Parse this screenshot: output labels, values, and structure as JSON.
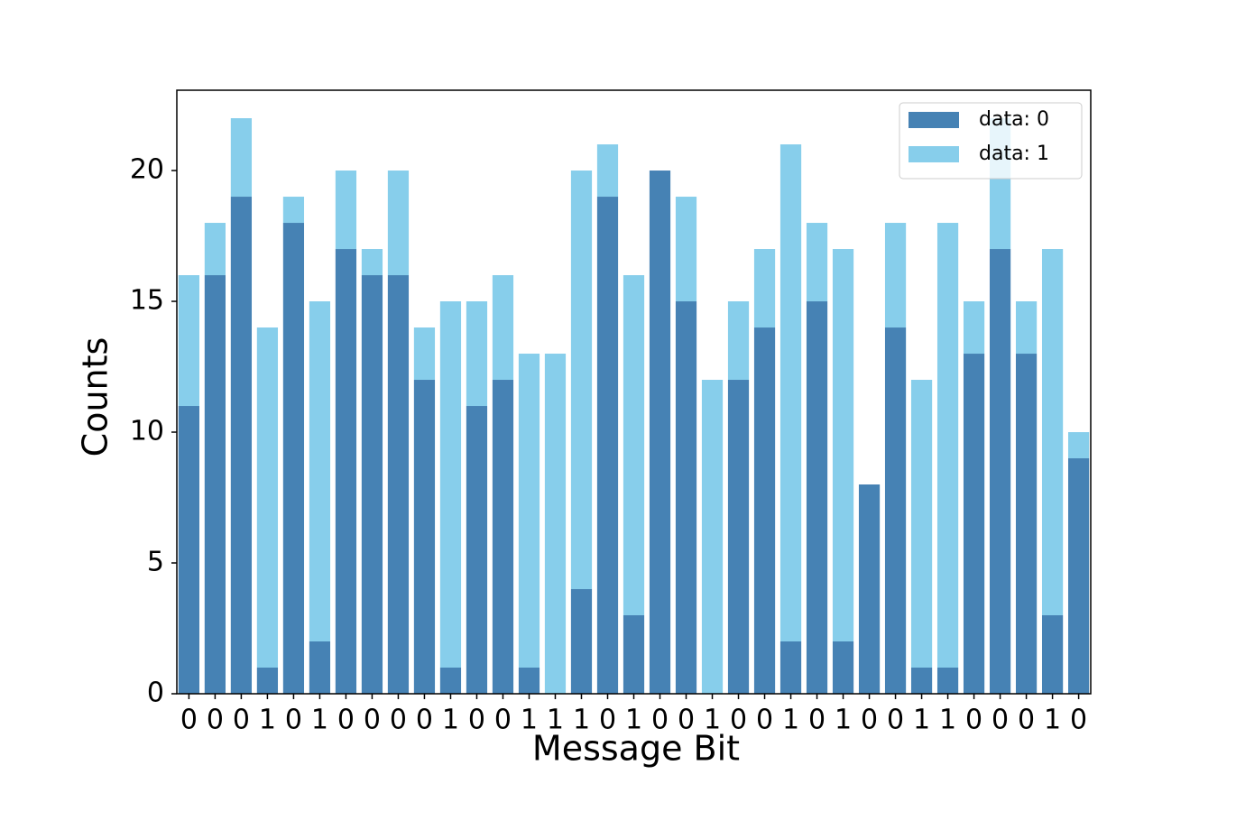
{
  "chart_data": {
    "type": "stacked_bar",
    "xlabel": "Message Bit",
    "ylabel": "Counts",
    "categories": [
      "0",
      "0",
      "0",
      "1",
      "0",
      "1",
      "0",
      "0",
      "0",
      "0",
      "1",
      "0",
      "0",
      "1",
      "1",
      "1",
      "0",
      "1",
      "0",
      "0",
      "1",
      "0",
      "0",
      "1",
      "0",
      "1",
      "0",
      "0",
      "1",
      "1",
      "0",
      "0",
      "0",
      "1",
      "0"
    ],
    "series": [
      {
        "name": "data: 0",
        "color": "#4682b4",
        "values": [
          11,
          16,
          19,
          1,
          18,
          2,
          17,
          16,
          16,
          12,
          1,
          11,
          12,
          1,
          0,
          4,
          19,
          3,
          20,
          15,
          0,
          12,
          14,
          2,
          15,
          2,
          8,
          14,
          1,
          1,
          13,
          17,
          13,
          3,
          9
        ]
      },
      {
        "name": "data: 1",
        "color": "#87ceeb",
        "values": [
          5,
          2,
          3,
          13,
          1,
          13,
          3,
          1,
          4,
          2,
          14,
          4,
          4,
          12,
          13,
          16,
          2,
          13,
          0,
          4,
          12,
          3,
          3,
          19,
          3,
          15,
          0,
          4,
          11,
          17,
          2,
          5,
          2,
          14,
          1
        ]
      }
    ],
    "ylim": [
      0,
      23.07
    ],
    "yticks": [
      0,
      5,
      10,
      15,
      20
    ],
    "grid": false,
    "legend": "upper right"
  }
}
